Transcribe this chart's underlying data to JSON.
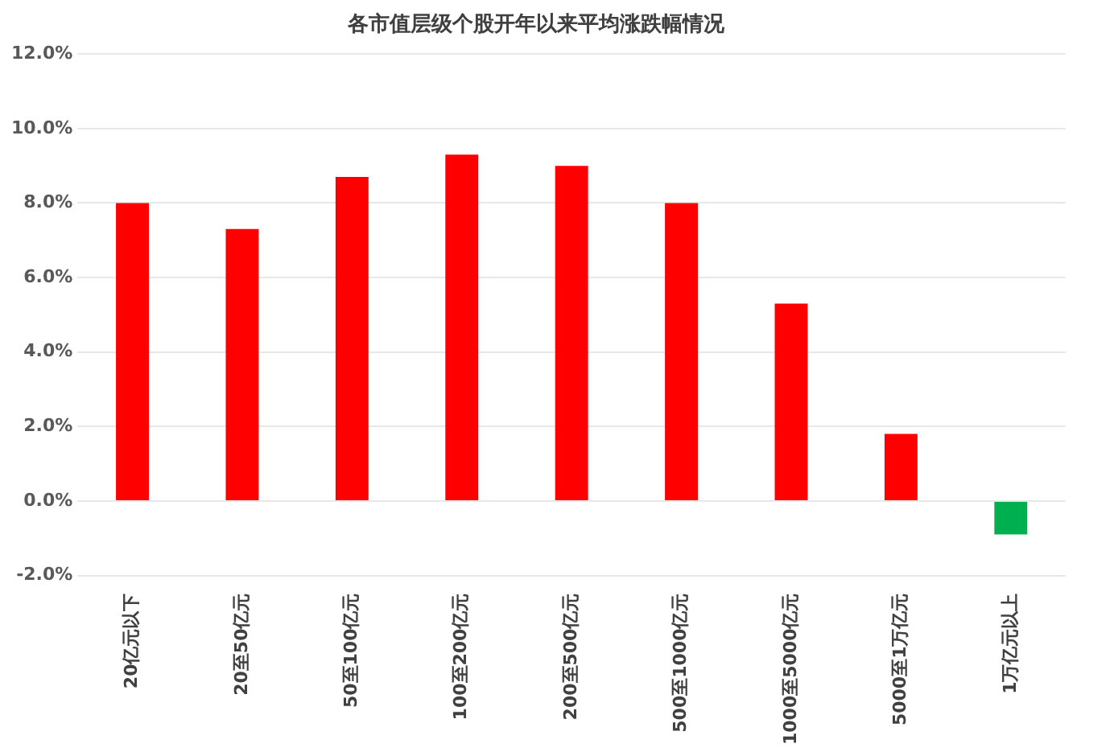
{
  "chart_data": {
    "type": "bar",
    "title": "各市值层级个股开年以来平均涨跌幅情况",
    "categories": [
      "20亿元以下",
      "20至50亿元",
      "50至100亿元",
      "100至200亿元",
      "200至500亿元",
      "500至1000亿元",
      "1000至5000亿元",
      "5000至1万亿元",
      "1万亿元以上"
    ],
    "values": [
      8.0,
      7.3,
      8.7,
      9.3,
      9.0,
      8.0,
      5.3,
      1.8,
      -0.9
    ],
    "colors": [
      "#ff0000",
      "#ff0000",
      "#ff0000",
      "#ff0000",
      "#ff0000",
      "#ff0000",
      "#ff0000",
      "#ff0000",
      "#00b050"
    ],
    "ylim": [
      -2,
      12
    ],
    "yticks": [
      {
        "value": -2,
        "label": "-2.0%"
      },
      {
        "value": 0,
        "label": "0.0%"
      },
      {
        "value": 2,
        "label": "2.0%"
      },
      {
        "value": 4,
        "label": "4.0%"
      },
      {
        "value": 6,
        "label": "6.0%"
      },
      {
        "value": 8,
        "label": "8.0%"
      },
      {
        "value": 10,
        "label": "10.0%"
      },
      {
        "value": 12,
        "label": "12.0%"
      }
    ],
    "grid": "y",
    "legend": false
  }
}
